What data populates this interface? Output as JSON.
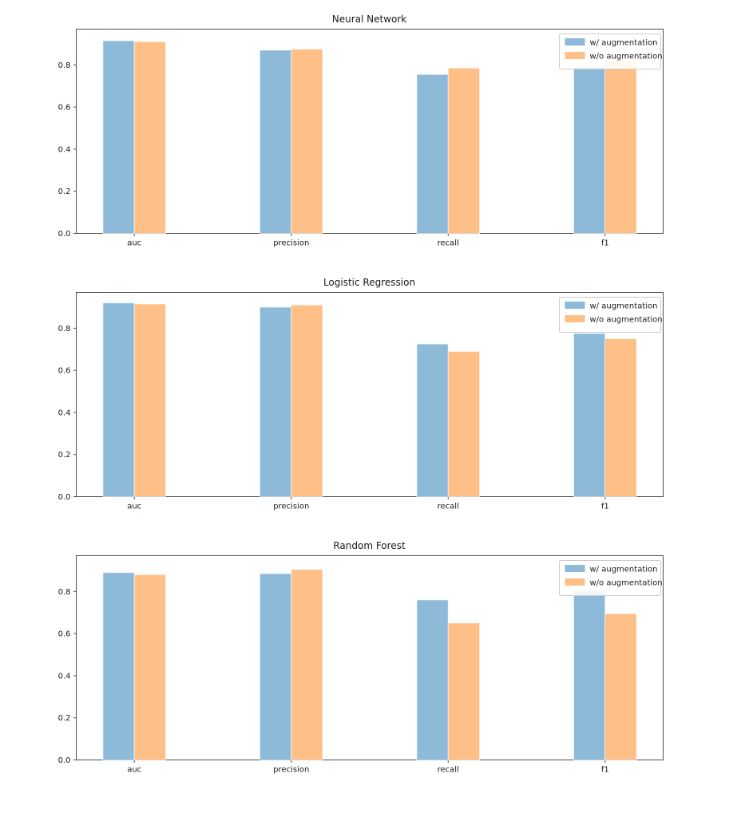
{
  "figure": {
    "background_color": "#ffffff",
    "axis_color": "#4d4d4d",
    "text_color": "#1a1a1a",
    "legend_border_color": "#cccccc",
    "series_colors": {
      "with_augmentation": "#8EBAD9",
      "without_augmentation": "#FFBF86"
    }
  },
  "chart_data": [
    {
      "type": "bar",
      "title": "Neural Network",
      "categories": [
        "auc",
        "precision",
        "recall",
        "f1"
      ],
      "series": [
        {
          "key": "with_augmentation",
          "name": "w/ augmentation",
          "color": "#8EBAD9",
          "values": [
            0.915,
            0.87,
            0.755,
            0.79
          ]
        },
        {
          "key": "without_augmentation",
          "name": "w/o augmentation",
          "color": "#FFBF86",
          "values": [
            0.91,
            0.875,
            0.785,
            0.82
          ]
        }
      ],
      "xlabel": "",
      "ylabel": "",
      "ylim": [
        0.0,
        0.97
      ],
      "yticks": [
        "0.0",
        "0.2",
        "0.4",
        "0.6",
        "0.8"
      ],
      "grid": false,
      "legend_position": "upper right"
    },
    {
      "type": "bar",
      "title": "Logistic Regression",
      "categories": [
        "auc",
        "precision",
        "recall",
        "f1"
      ],
      "series": [
        {
          "key": "with_augmentation",
          "name": "w/ augmentation",
          "color": "#8EBAD9",
          "values": [
            0.92,
            0.9,
            0.725,
            0.775
          ]
        },
        {
          "key": "without_augmentation",
          "name": "w/o augmentation",
          "color": "#FFBF86",
          "values": [
            0.915,
            0.91,
            0.69,
            0.75
          ]
        }
      ],
      "xlabel": "",
      "ylabel": "",
      "ylim": [
        0.0,
        0.97
      ],
      "yticks": [
        "0.0",
        "0.2",
        "0.4",
        "0.6",
        "0.8"
      ],
      "grid": false,
      "legend_position": "upper right"
    },
    {
      "type": "bar",
      "title": "Random Forest",
      "categories": [
        "auc",
        "precision",
        "recall",
        "f1"
      ],
      "series": [
        {
          "key": "with_augmentation",
          "name": "w/ augmentation",
          "color": "#8EBAD9",
          "values": [
            0.89,
            0.885,
            0.76,
            0.805
          ]
        },
        {
          "key": "without_augmentation",
          "name": "w/o augmentation",
          "color": "#FFBF86",
          "values": [
            0.88,
            0.905,
            0.65,
            0.695
          ]
        }
      ],
      "xlabel": "",
      "ylabel": "",
      "ylim": [
        0.0,
        0.97
      ],
      "yticks": [
        "0.0",
        "0.2",
        "0.4",
        "0.6",
        "0.8"
      ],
      "grid": false,
      "legend_position": "upper right"
    }
  ]
}
